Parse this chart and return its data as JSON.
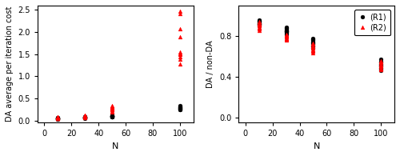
{
  "left": {
    "xlabel": "N",
    "ylabel": "DA average per iteration cost",
    "xlim": [
      -5,
      110
    ],
    "ylim": [
      -0.05,
      2.6
    ],
    "xticks": [
      0,
      20,
      40,
      60,
      80,
      100
    ],
    "yticks": [
      0.0,
      0.5,
      1.0,
      1.5,
      2.0,
      2.5
    ],
    "R1_x": [
      10,
      10,
      10,
      10,
      10,
      10,
      10,
      10,
      10,
      10,
      30,
      30,
      30,
      30,
      30,
      30,
      30,
      30,
      30,
      30,
      50,
      50,
      50,
      50,
      50,
      50,
      50,
      50,
      50,
      50,
      100,
      100,
      100,
      100,
      100,
      100,
      100,
      100,
      100,
      100
    ],
    "R1_y": [
      0.03,
      0.03,
      0.04,
      0.04,
      0.04,
      0.05,
      0.05,
      0.05,
      0.06,
      0.06,
      0.05,
      0.06,
      0.06,
      0.06,
      0.07,
      0.07,
      0.07,
      0.08,
      0.08,
      0.09,
      0.08,
      0.08,
      0.09,
      0.09,
      0.1,
      0.1,
      0.1,
      0.11,
      0.11,
      0.12,
      0.24,
      0.25,
      0.26,
      0.27,
      0.28,
      0.29,
      0.3,
      0.31,
      0.32,
      0.33
    ],
    "R2_x": [
      10,
      10,
      10,
      10,
      10,
      10,
      10,
      10,
      10,
      10,
      30,
      30,
      30,
      30,
      30,
      30,
      30,
      30,
      30,
      30,
      50,
      50,
      50,
      50,
      50,
      50,
      50,
      50,
      50,
      50,
      100,
      100,
      100,
      100,
      100,
      100,
      100,
      100,
      100,
      100
    ],
    "R2_y": [
      0.04,
      0.05,
      0.05,
      0.06,
      0.06,
      0.07,
      0.07,
      0.08,
      0.08,
      0.09,
      0.07,
      0.08,
      0.08,
      0.09,
      0.09,
      0.1,
      0.1,
      0.11,
      0.12,
      0.13,
      0.2,
      0.22,
      0.24,
      0.25,
      0.27,
      0.28,
      0.29,
      0.3,
      0.32,
      0.33,
      1.28,
      1.38,
      1.45,
      1.5,
      1.52,
      1.55,
      1.9,
      2.08,
      2.42,
      2.48
    ]
  },
  "right": {
    "xlabel": "N",
    "ylabel": "DA / non-DA",
    "xlim": [
      -5,
      110
    ],
    "ylim": [
      -0.05,
      1.1
    ],
    "xticks": [
      0,
      20,
      40,
      60,
      80,
      100
    ],
    "yticks": [
      0.0,
      0.4,
      0.8
    ],
    "R1_x": [
      10,
      10,
      10,
      10,
      10,
      10,
      10,
      10,
      10,
      10,
      30,
      30,
      30,
      30,
      30,
      30,
      30,
      30,
      30,
      30,
      50,
      50,
      50,
      50,
      50,
      50,
      50,
      50,
      50,
      50,
      100,
      100,
      100,
      100,
      100,
      100,
      100,
      100,
      100,
      100
    ],
    "R1_y": [
      0.9,
      0.91,
      0.92,
      0.92,
      0.93,
      0.93,
      0.94,
      0.94,
      0.95,
      0.96,
      0.82,
      0.83,
      0.84,
      0.85,
      0.85,
      0.86,
      0.86,
      0.87,
      0.88,
      0.89,
      0.68,
      0.7,
      0.71,
      0.72,
      0.73,
      0.74,
      0.75,
      0.76,
      0.77,
      0.78,
      0.46,
      0.48,
      0.49,
      0.5,
      0.51,
      0.52,
      0.53,
      0.54,
      0.55,
      0.57
    ],
    "R2_x": [
      10,
      10,
      10,
      10,
      10,
      10,
      10,
      10,
      10,
      10,
      30,
      30,
      30,
      30,
      30,
      30,
      30,
      30,
      30,
      30,
      50,
      50,
      50,
      50,
      50,
      50,
      50,
      50,
      50,
      50,
      100,
      100,
      100,
      100,
      100,
      100,
      100,
      100,
      100,
      100
    ],
    "R2_y": [
      0.86,
      0.87,
      0.88,
      0.89,
      0.9,
      0.91,
      0.91,
      0.92,
      0.93,
      0.94,
      0.76,
      0.77,
      0.78,
      0.78,
      0.79,
      0.8,
      0.8,
      0.81,
      0.81,
      0.82,
      0.64,
      0.65,
      0.66,
      0.67,
      0.68,
      0.69,
      0.7,
      0.71,
      0.72,
      0.73,
      0.47,
      0.48,
      0.49,
      0.5,
      0.51,
      0.52,
      0.53,
      0.54,
      0.55,
      0.56
    ]
  },
  "R1_color": "black",
  "R2_color": "red",
  "R1_marker": "o",
  "R2_marker": "^",
  "markersize": 3.5,
  "legend_labels": [
    "(R1)",
    "(R2)"
  ],
  "bg_color": "#ffffff"
}
